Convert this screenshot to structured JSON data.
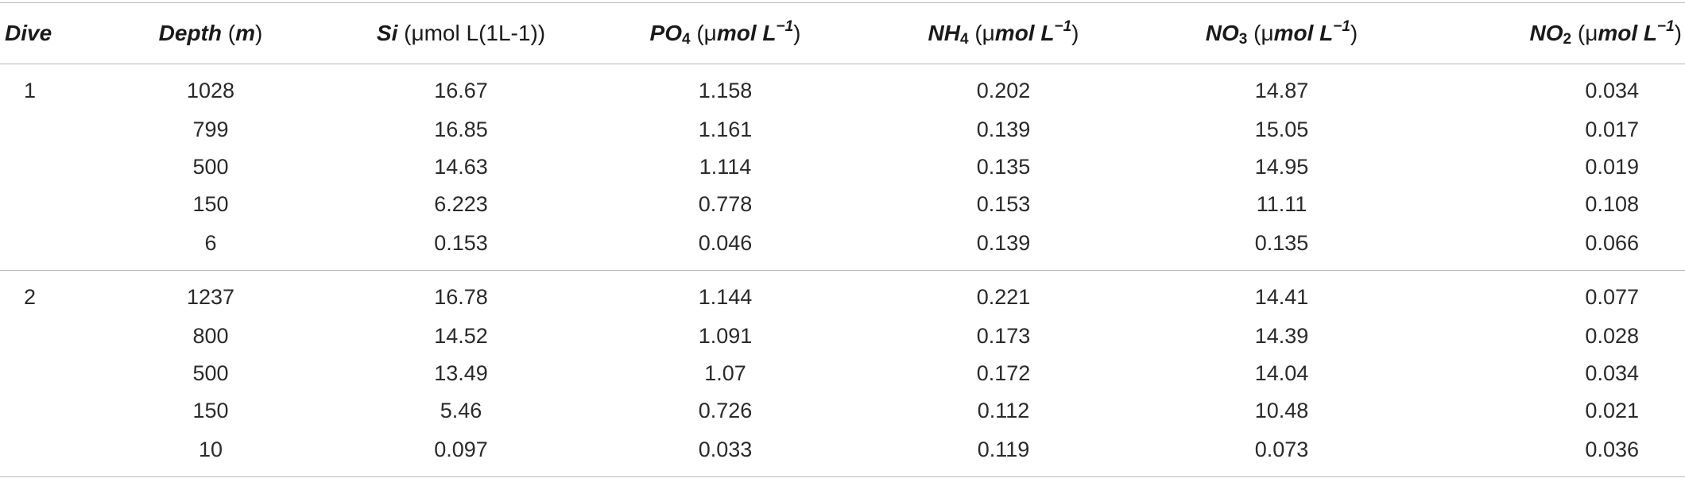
{
  "headers": {
    "dive": "Dive",
    "depth": {
      "symbol": "Depth",
      "unit": "m"
    },
    "si": {
      "symbol": "Si",
      "unit_prefix": "μmol ",
      "unit_rest": "L(1L-1)"
    },
    "po4": {
      "symbol": "PO",
      "sub": "4",
      "unit_prefix": "μ",
      "unit_mid": "mol L",
      "sup": "−1"
    },
    "nh4": {
      "symbol": "NH",
      "sub": "4",
      "unit_prefix": "μ",
      "unit_mid": "mol L",
      "sup": "−1"
    },
    "no3": {
      "symbol": "NO",
      "sub": "3",
      "unit_prefix": "μ",
      "unit_mid": "mol L",
      "sup": "−1"
    },
    "no2": {
      "symbol": "NO",
      "sub": "2",
      "unit_prefix": "μ",
      "unit_mid": "mol L",
      "sup": "−1"
    }
  },
  "groups": [
    {
      "dive": "1",
      "rows": [
        {
          "depth": "1028",
          "si": "16.67",
          "po4": "1.158",
          "nh4": "0.202",
          "no3": "14.87",
          "no2": "0.034"
        },
        {
          "depth": "799",
          "si": "16.85",
          "po4": "1.161",
          "nh4": "0.139",
          "no3": "15.05",
          "no2": "0.017"
        },
        {
          "depth": "500",
          "si": "14.63",
          "po4": "1.114",
          "nh4": "0.135",
          "no3": "14.95",
          "no2": "0.019"
        },
        {
          "depth": "150",
          "si": "6.223",
          "po4": "0.778",
          "nh4": "0.153",
          "no3": "11.11",
          "no2": "0.108"
        },
        {
          "depth": "6",
          "si": "0.153",
          "po4": "0.046",
          "nh4": "0.139",
          "no3": "0.135",
          "no2": "0.066"
        }
      ]
    },
    {
      "dive": "2",
      "rows": [
        {
          "depth": "1237",
          "si": "16.78",
          "po4": "1.144",
          "nh4": "0.221",
          "no3": "14.41",
          "no2": "0.077"
        },
        {
          "depth": "800",
          "si": "14.52",
          "po4": "1.091",
          "nh4": "0.173",
          "no3": "14.39",
          "no2": "0.028"
        },
        {
          "depth": "500",
          "si": "13.49",
          "po4": "1.07",
          "nh4": "0.172",
          "no3": "14.04",
          "no2": "0.034"
        },
        {
          "depth": "150",
          "si": "5.46",
          "po4": "0.726",
          "nh4": "0.112",
          "no3": "10.48",
          "no2": "0.021"
        },
        {
          "depth": "10",
          "si": "0.097",
          "po4": "0.033",
          "nh4": "0.119",
          "no3": "0.073",
          "no2": "0.036"
        }
      ]
    }
  ]
}
